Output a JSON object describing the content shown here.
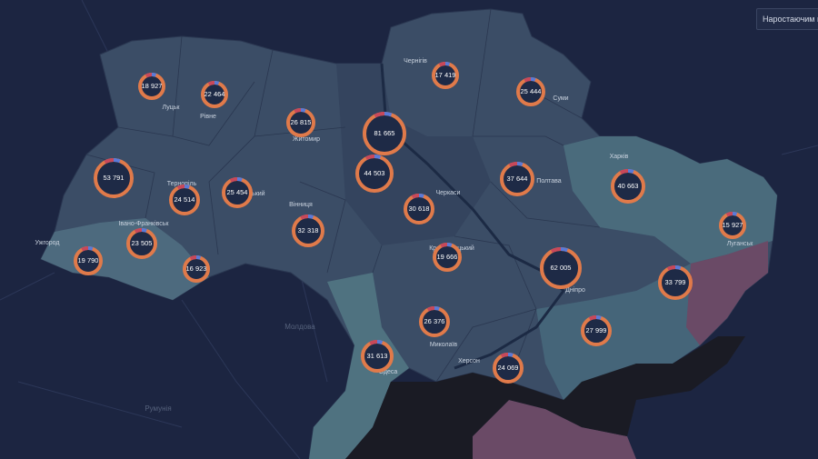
{
  "toolbar": {
    "button": "Наростаючим п"
  },
  "markers": [
    {
      "value": "18 927"
    },
    {
      "value": "22 464"
    },
    {
      "value": "26 815"
    },
    {
      "value": "81 665"
    },
    {
      "value": "17 419"
    },
    {
      "value": "25 444"
    },
    {
      "value": "53 791"
    },
    {
      "value": "24 514"
    },
    {
      "value": "25 454"
    },
    {
      "value": "44 503"
    },
    {
      "value": "30 618"
    },
    {
      "value": "37 644"
    },
    {
      "value": "40 663"
    },
    {
      "value": "15 927"
    },
    {
      "value": "32 318"
    },
    {
      "value": "23 505"
    },
    {
      "value": "19 790"
    },
    {
      "value": "16 923"
    },
    {
      "value": "19 666"
    },
    {
      "value": "62 005"
    },
    {
      "value": "33 799"
    },
    {
      "value": "26 376"
    },
    {
      "value": "27 999"
    },
    {
      "value": "31 613"
    },
    {
      "value": "24 069"
    }
  ],
  "labels": [
    "Чернігів",
    "Суми",
    "Луцьк",
    "Рівне",
    "Житомир",
    "Харків",
    "Тернопіль",
    "Хмельницький",
    "Вінниця",
    "Черкаси",
    "Полтава",
    "Луганськ",
    "Ужгород",
    "Івано-Франківськ",
    "Кропивницький",
    "Дніпро",
    "Миколаїв",
    "Херсон",
    "Одеса",
    "Молдова",
    "Румунія"
  ]
}
